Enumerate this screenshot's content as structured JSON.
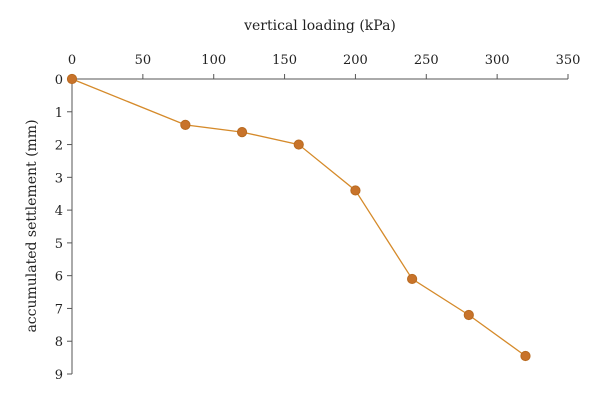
{
  "chart_data": {
    "type": "line",
    "xlabel": "vertical loading (kPa)",
    "ylabel": "accumulated settlement (mm)",
    "xlim": [
      0,
      350
    ],
    "ylim": [
      0,
      9
    ],
    "y_inverted": true,
    "x_axis_position": "top",
    "grid": false,
    "x_ticks": [
      "0",
      "50",
      "100",
      "150",
      "200",
      "250",
      "300",
      "350"
    ],
    "y_ticks": [
      "0",
      "1",
      "2",
      "3",
      "4",
      "5",
      "6",
      "7",
      "8",
      "9"
    ],
    "series": [
      {
        "x": [
          0,
          80,
          120,
          160,
          200,
          240,
          280,
          320
        ],
        "y": [
          0,
          1.4,
          1.62,
          2.0,
          3.4,
          6.1,
          7.2,
          8.45
        ],
        "color": "#c8732a"
      }
    ]
  }
}
